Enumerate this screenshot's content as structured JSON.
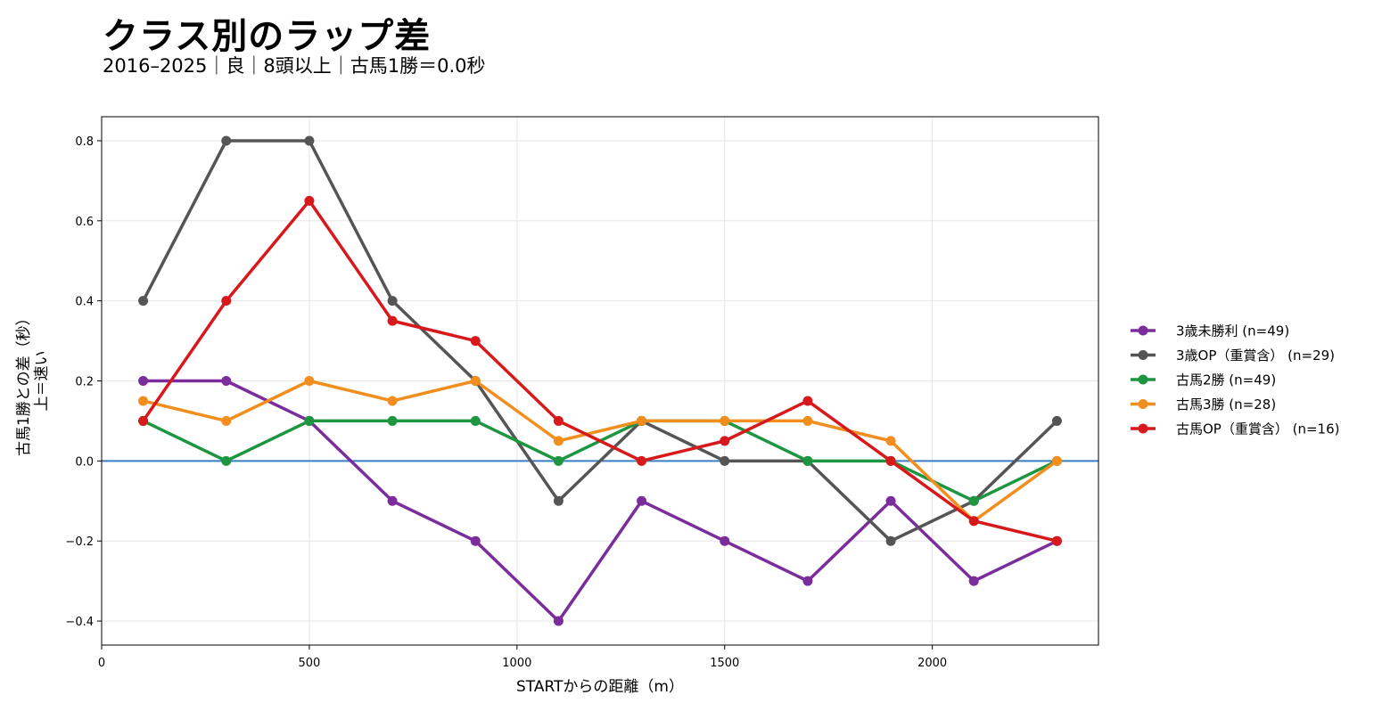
{
  "title": "クラス別のラップ差",
  "subtitle": "2016–2025｜良｜8頭以上｜古馬1勝＝0.0秒",
  "chart_data": {
    "type": "line",
    "xlabel": "STARTからの距離（m）",
    "ylabel_lines": [
      "古馬1勝との差（秒）",
      "上＝速い"
    ],
    "xlim": [
      0,
      2400
    ],
    "ylim": [
      -0.46,
      0.86
    ],
    "xticks": [
      0,
      500,
      1000,
      1500,
      2000
    ],
    "yticks": [
      -0.4,
      -0.2,
      0.0,
      0.2,
      0.4,
      0.6,
      0.8
    ],
    "ytick_labels": [
      "−0.4",
      "−0.2",
      "0.0",
      "0.2",
      "0.4",
      "0.6",
      "0.8"
    ],
    "grid": true,
    "legend_position": "right",
    "reference_line": {
      "y": 0.0,
      "color": "#3a7ebf"
    },
    "x": [
      100,
      300,
      500,
      700,
      900,
      1100,
      1300,
      1500,
      1700,
      1900,
      2100,
      2300
    ],
    "series": [
      {
        "name": "3歳未勝利 (n=49)",
        "color": "#7b2d9b",
        "values": [
          0.2,
          0.2,
          0.1,
          -0.1,
          -0.2,
          -0.4,
          -0.1,
          -0.2,
          -0.3,
          -0.1,
          -0.3,
          -0.2
        ]
      },
      {
        "name": "3歳OP（重賞含） (n=29)",
        "color": "#555555",
        "values": [
          0.4,
          0.8,
          0.8,
          0.4,
          0.2,
          -0.1,
          0.1,
          0.0,
          0.0,
          -0.2,
          -0.1,
          0.1
        ]
      },
      {
        "name": "古馬2勝 (n=49)",
        "color": "#1e9641",
        "values": [
          0.1,
          0.0,
          0.1,
          0.1,
          0.1,
          0.0,
          0.1,
          0.1,
          0.0,
          0.0,
          -0.1,
          0.0
        ]
      },
      {
        "name": "古馬3勝 (n=28)",
        "color": "#f28e1e",
        "values": [
          0.15,
          0.1,
          0.2,
          0.15,
          0.2,
          0.05,
          0.1,
          0.1,
          0.1,
          0.05,
          -0.15,
          0.0
        ]
      },
      {
        "name": "古馬OP（重賞含） (n=16)",
        "color": "#d7191c",
        "values": [
          0.1,
          0.4,
          0.65,
          0.35,
          0.3,
          0.1,
          0.0,
          0.05,
          0.15,
          0.0,
          -0.15,
          -0.2
        ]
      }
    ]
  }
}
